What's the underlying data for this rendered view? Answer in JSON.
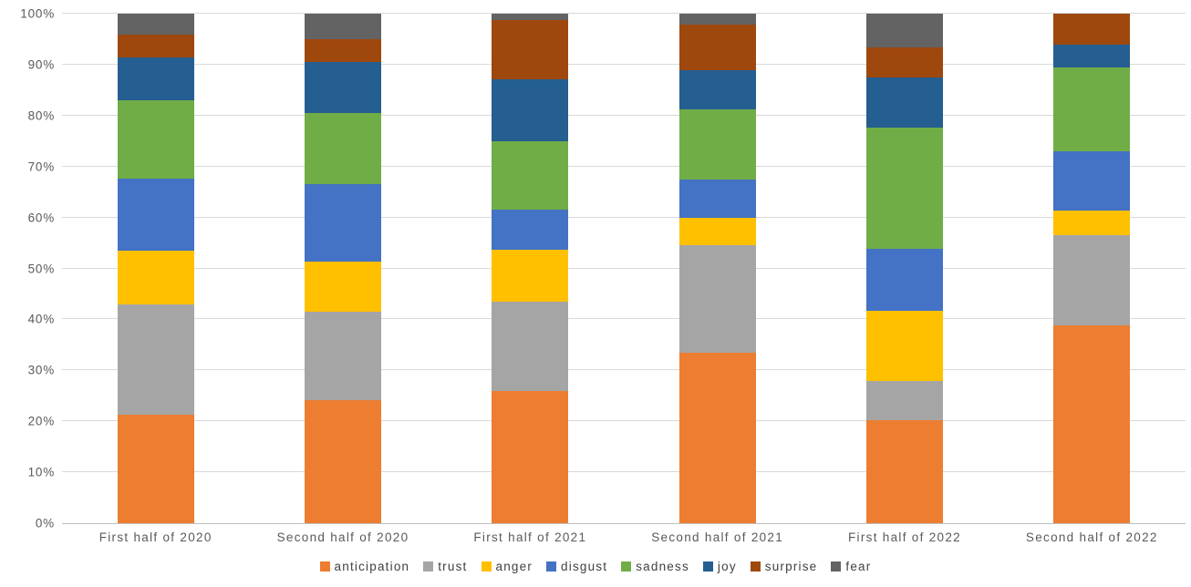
{
  "chart_data": {
    "type": "bar",
    "stacked": true,
    "percent_stacked": true,
    "title": "",
    "xlabel": "",
    "ylabel": "",
    "categories": [
      "First half of 2020",
      "Second half of 2020",
      "First half of 2021",
      "Second half of 2021",
      "First half of 2022",
      "Second half of 2022"
    ],
    "series": [
      {
        "name": "anticipation",
        "color": "#ED7D31",
        "values": [
          21.3,
          24.1,
          25.9,
          33.5,
          20.2,
          38.8
        ]
      },
      {
        "name": "trust",
        "color": "#A5A5A5",
        "values": [
          21.7,
          17.4,
          17.6,
          21.1,
          7.8,
          17.7
        ]
      },
      {
        "name": "anger",
        "color": "#FFC000",
        "values": [
          10.5,
          9.8,
          10.2,
          5.4,
          13.6,
          4.8
        ]
      },
      {
        "name": "disgust",
        "color": "#4472C4",
        "values": [
          14.2,
          15.3,
          7.9,
          7.5,
          12.3,
          11.7
        ]
      },
      {
        "name": "sadness",
        "color": "#70AD47",
        "values": [
          15.3,
          13.9,
          13.4,
          13.7,
          23.8,
          16.5
        ]
      },
      {
        "name": "joy",
        "color": "#255E91",
        "values": [
          8.4,
          10.0,
          12.1,
          7.7,
          9.8,
          4.5
        ]
      },
      {
        "name": "surprise",
        "color": "#9E480E",
        "values": [
          4.5,
          4.5,
          11.6,
          8.9,
          5.9,
          6.0
        ]
      },
      {
        "name": "fear",
        "color": "#636363",
        "values": [
          4.1,
          5.0,
          1.3,
          2.2,
          6.6,
          0.0
        ]
      }
    ],
    "y_axis": {
      "min": 0,
      "max": 100,
      "step": 10,
      "ticks": [
        "0%",
        "10%",
        "20%",
        "30%",
        "40%",
        "50%",
        "60%",
        "70%",
        "80%",
        "90%",
        "100%"
      ],
      "grid": true
    },
    "legend": {
      "position": "bottom",
      "items": [
        "anticipation",
        "trust",
        "anger",
        "disgust",
        "sadness",
        "joy",
        "surprise",
        "fear"
      ]
    },
    "layout": {
      "gridline_color": "#D9D9D9",
      "axis_line_color": "#BFBFBF",
      "tick_label_color": "#595959",
      "legend_label_color": "#404040",
      "background": "#FFFFFF"
    }
  }
}
